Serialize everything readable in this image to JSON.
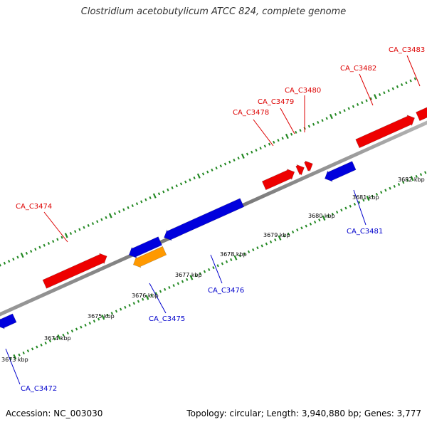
{
  "title": "Clostridium acetobutylicum ATCC 824, complete genome",
  "footer": {
    "accession": "Accession: NC_003030",
    "summary": "Topology: circular; Length: 3,940,880 bp; Genes: 3,777"
  },
  "colors": {
    "forward_gene": "#ee0000",
    "reverse_gene": "#0000dd",
    "other_gene": "#ff9900",
    "backbone": "#808080",
    "ticks": "#228822",
    "forward_label": "#dd0000",
    "reverse_label": "#0000cc"
  },
  "tick_labels": [
    "3673 kbp",
    "3674 kbp",
    "3675 kbp",
    "3676 kbp",
    "3677 kbp",
    "3678 kbp",
    "3679 kbp",
    "3680 kbp",
    "3681 kbp",
    "3682 kbp"
  ],
  "genes": [
    {
      "label": "CA_C3472",
      "strand": "reverse",
      "type": "cds"
    },
    {
      "label": "CA_C3474",
      "strand": "forward",
      "type": "cds"
    },
    {
      "label": "CA_C3475",
      "strand": "reverse",
      "type": "other"
    },
    {
      "label": "CA_C3476",
      "strand": "reverse",
      "type": "cds"
    },
    {
      "label": "CA_C3478",
      "strand": "forward",
      "type": "cds"
    },
    {
      "label": "CA_C3479",
      "strand": "forward",
      "type": "cds"
    },
    {
      "label": "CA_C3480",
      "strand": "forward",
      "type": "cds"
    },
    {
      "label": "CA_C3481",
      "strand": "reverse",
      "type": "cds"
    },
    {
      "label": "CA_C3482",
      "strand": "forward",
      "type": "cds"
    },
    {
      "label": "CA_C3483",
      "strand": "forward",
      "type": "cds"
    }
  ]
}
